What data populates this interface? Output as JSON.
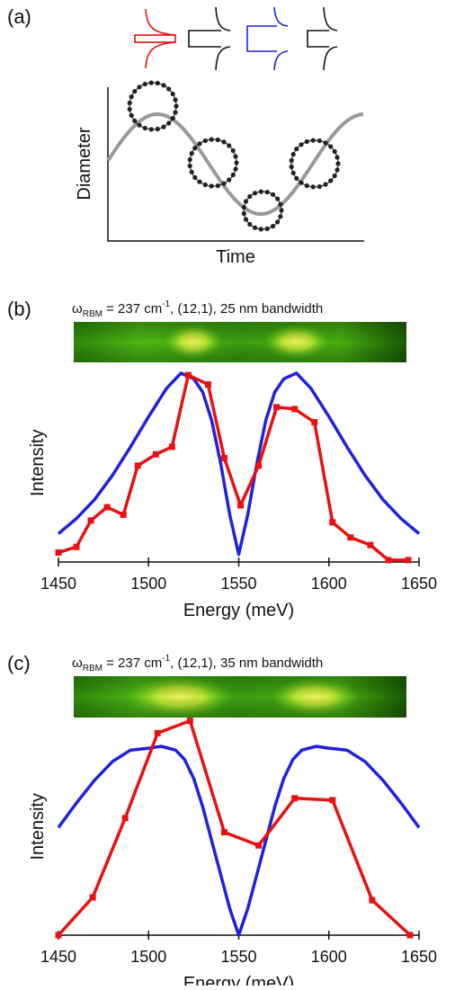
{
  "panel_a": {
    "label": "(a)",
    "y_label": "Diameter",
    "x_label": "Time"
  },
  "chart_data": [
    {
      "type": "line",
      "panel_label": "(b)",
      "title": {
        "symbol": "ω",
        "subscript": "RBM",
        "text": " = 237 cm",
        "superscript": "-1",
        "rest": ", (12,1), 25 nm bandwidth"
      },
      "x_label": "Energy (meV)",
      "y_label": "Intensity",
      "xlim": [
        1450,
        1650
      ],
      "xticks": [
        1450,
        1500,
        1550,
        1600,
        1650
      ],
      "ylim": [
        0,
        1.05
      ],
      "series": [
        {
          "color": "#2020e0",
          "marker": "none",
          "x": [
            1450,
            1460,
            1470,
            1480,
            1490,
            1500,
            1510,
            1518,
            1525,
            1530,
            1535,
            1540,
            1545,
            1550,
            1555,
            1560,
            1565,
            1570,
            1575,
            1582,
            1590,
            1600,
            1610,
            1620,
            1630,
            1640,
            1650
          ],
          "values": [
            0.15,
            0.23,
            0.33,
            0.46,
            0.61,
            0.77,
            0.92,
            1.0,
            0.97,
            0.9,
            0.75,
            0.52,
            0.25,
            0.04,
            0.25,
            0.52,
            0.75,
            0.9,
            0.97,
            1.0,
            0.92,
            0.77,
            0.61,
            0.46,
            0.33,
            0.23,
            0.15
          ]
        },
        {
          "color": "#e81010",
          "marker": "square",
          "x": [
            1450,
            1460,
            1468,
            1477,
            1486,
            1494,
            1504,
            1513,
            1522,
            1533,
            1542,
            1551,
            1561,
            1571,
            1581,
            1592,
            1602,
            1612,
            1623,
            1633,
            1644
          ],
          "values": [
            0.05,
            0.08,
            0.22,
            0.29,
            0.25,
            0.51,
            0.57,
            0.61,
            0.99,
            0.94,
            0.55,
            0.3,
            0.51,
            0.82,
            0.81,
            0.74,
            0.21,
            0.13,
            0.09,
            0.01,
            0.01
          ]
        }
      ]
    },
    {
      "type": "line",
      "panel_label": "(c)",
      "title": {
        "symbol": "ω",
        "subscript": "RBM",
        "text": " = 237 cm",
        "superscript": "-1",
        "rest": ", (12,1), 35 nm bandwidth"
      },
      "x_label": "Energy (meV)",
      "y_label": "Intensity",
      "xlim": [
        1450,
        1650
      ],
      "xticks": [
        1450,
        1500,
        1550,
        1600,
        1650
      ],
      "ylim": [
        0,
        1.15
      ],
      "series": [
        {
          "color": "#2020e0",
          "marker": "none",
          "x": [
            1450,
            1460,
            1470,
            1480,
            1490,
            1500,
            1507,
            1515,
            1520,
            1525,
            1530,
            1535,
            1540,
            1545,
            1550,
            1555,
            1560,
            1565,
            1570,
            1575,
            1580,
            1585,
            1593,
            1600,
            1610,
            1620,
            1630,
            1640,
            1650
          ],
          "values": [
            0.57,
            0.7,
            0.82,
            0.92,
            0.98,
            0.99,
            1.0,
            0.98,
            0.93,
            0.83,
            0.68,
            0.5,
            0.32,
            0.14,
            0.0,
            0.14,
            0.32,
            0.5,
            0.68,
            0.83,
            0.93,
            0.98,
            1.0,
            0.99,
            0.98,
            0.92,
            0.82,
            0.7,
            0.57
          ]
        },
        {
          "color": "#e81010",
          "marker": "square",
          "x": [
            1450,
            1469,
            1487,
            1505,
            1523,
            1542,
            1561,
            1581,
            1602,
            1624,
            1645
          ],
          "values": [
            0.0,
            0.2,
            0.62,
            1.07,
            1.135,
            0.545,
            0.475,
            0.725,
            0.715,
            0.185,
            0.0
          ]
        }
      ]
    }
  ]
}
